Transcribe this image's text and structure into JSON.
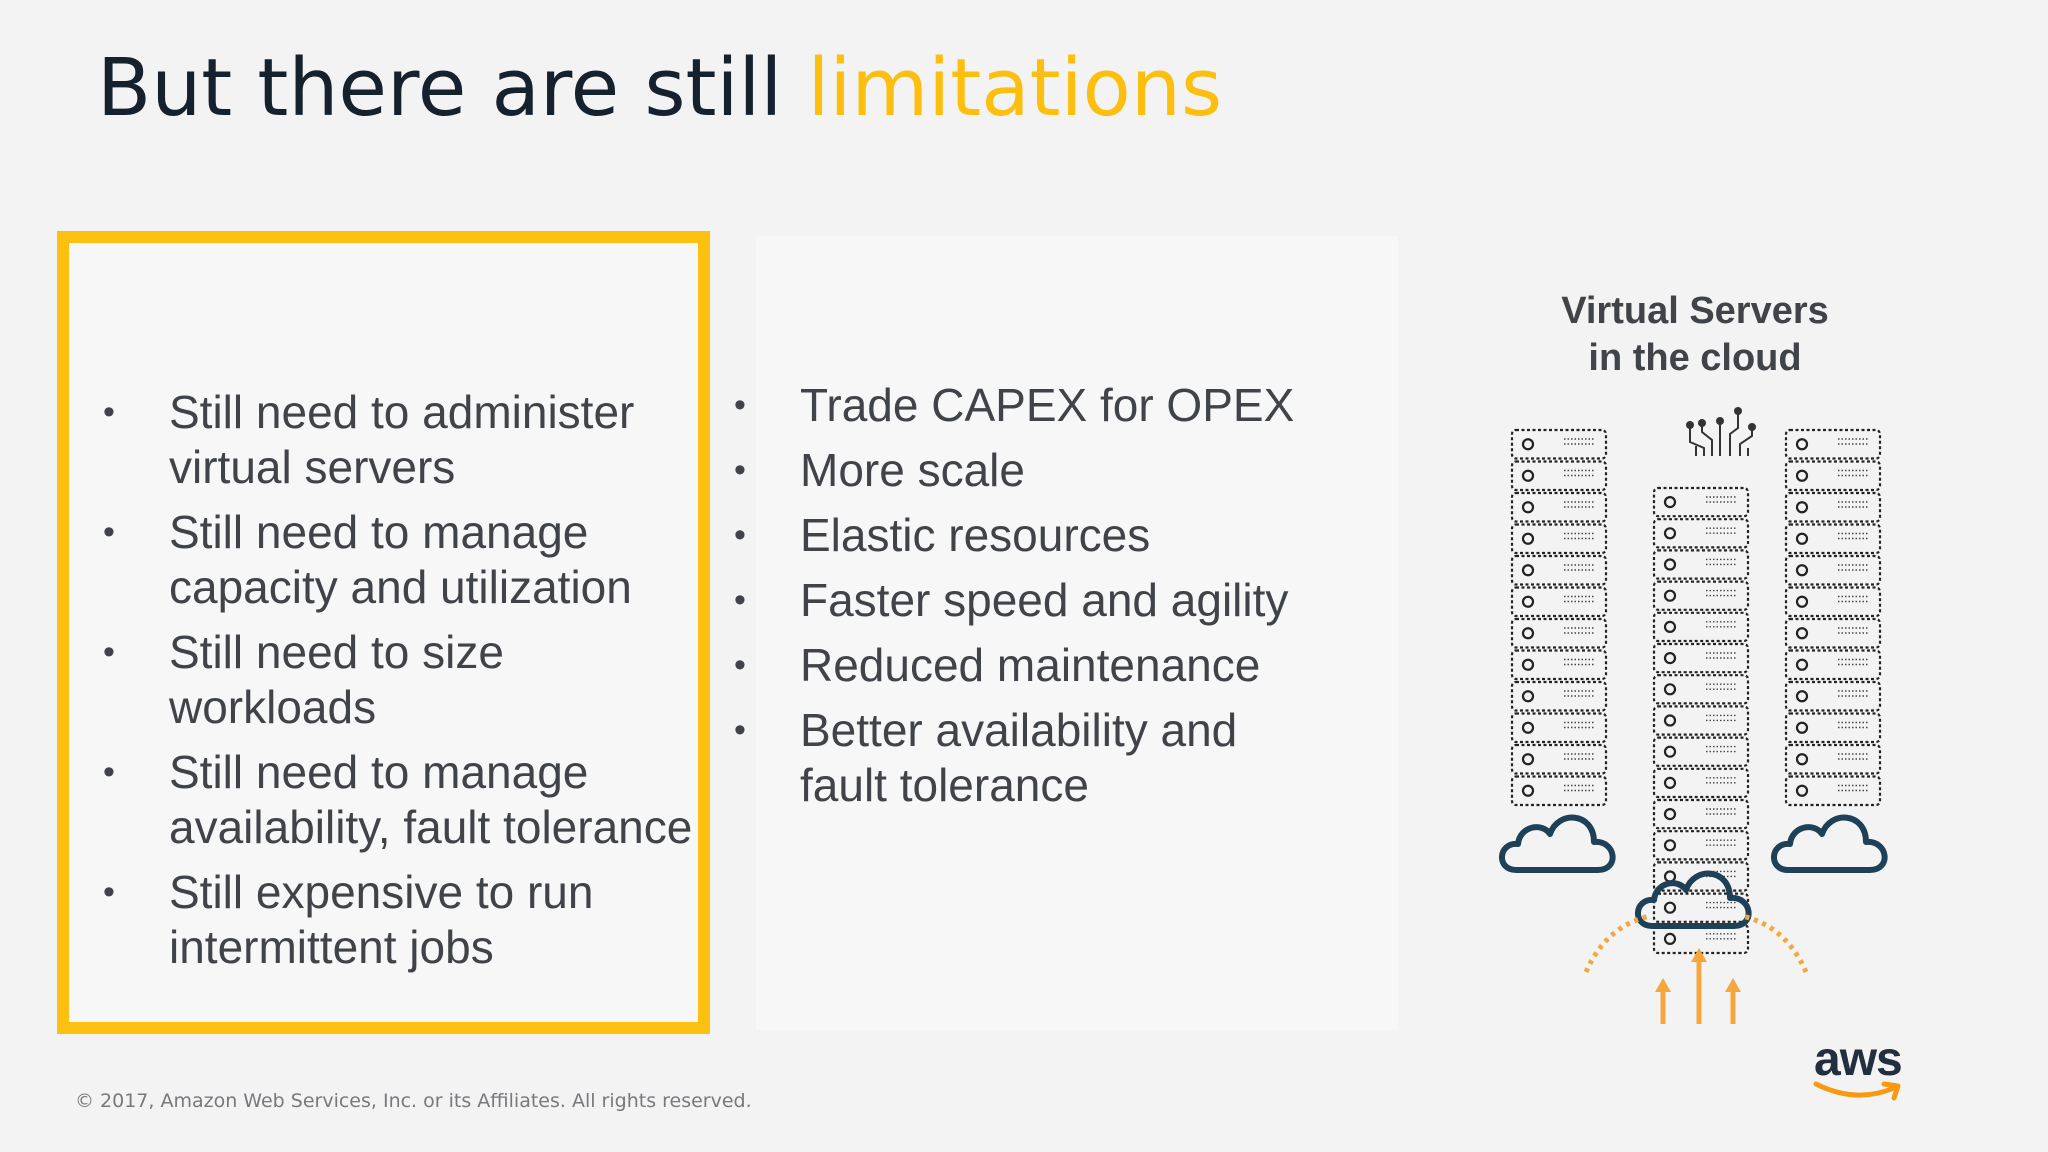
{
  "title": {
    "main": "But there are still",
    "accent": "limitations"
  },
  "left_panel": {
    "items": [
      {
        "line1": "Still need to administer",
        "line2": "virtual servers"
      },
      {
        "line1": "Still need to manage",
        "line2": "capacity and utilization"
      },
      {
        "line1": "Still need to size",
        "line2": "workloads"
      },
      {
        "line1": "Still need to manage",
        "line2": "availability, fault tolerance"
      },
      {
        "line1": "Still expensive to run",
        "line2": "intermittent jobs"
      }
    ]
  },
  "middle_panel": {
    "items": [
      {
        "line1": "Trade CAPEX for OPEX",
        "line2": ""
      },
      {
        "line1": "More scale",
        "line2": ""
      },
      {
        "line1": "Elastic resources",
        "line2": ""
      },
      {
        "line1": "Faster speed and agility",
        "line2": ""
      },
      {
        "line1": "Reduced maintenance",
        "line2": ""
      },
      {
        "line1": "Better availability and",
        "line2": "fault tolerance"
      }
    ]
  },
  "illustration": {
    "heading_line1": "Virtual Servers",
    "heading_line2": "in the cloud",
    "cloud_color": "#1e4158",
    "arrow_color": "#f4a73c",
    "icons": [
      "server-rack-icon",
      "cloud-icon",
      "upload-arrow-icon"
    ]
  },
  "footer": {
    "copyright": "© 2017, Amazon Web Services, Inc. or its Affiliates. All rights reserved."
  },
  "logo": {
    "text": "aws",
    "smile_color": "#f79a12"
  },
  "colors": {
    "accent": "#fdc010",
    "title_dark": "#15222e",
    "body_text": "#404348",
    "background": "#f3f3f4"
  }
}
